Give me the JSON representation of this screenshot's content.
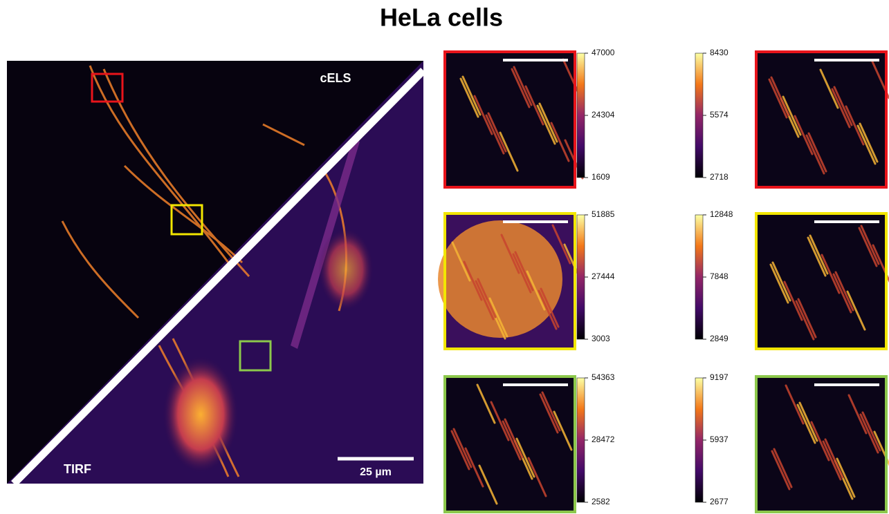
{
  "title": "HeLa cells",
  "main_image": {
    "top_label": "cELS",
    "bottom_label": "TIRF",
    "scale_bar": "25 µm"
  },
  "insets": [
    {
      "color": "#e8141b",
      "left_colorbar": {
        "max": 47000,
        "mid": 24304,
        "min": 1609
      },
      "right_colorbar": {
        "max": 8430,
        "mid": 5574,
        "min": 2718
      }
    },
    {
      "color": "#f2e600",
      "left_colorbar": {
        "max": 51885,
        "mid": 27444,
        "min": 3003
      },
      "right_colorbar": {
        "max": 12848,
        "mid": 7848,
        "min": 2849
      }
    },
    {
      "color": "#8cc84b",
      "left_colorbar": {
        "max": 54363,
        "mid": 28472,
        "min": 2582
      },
      "right_colorbar": {
        "max": 9197,
        "mid": 5937,
        "min": 2677
      }
    }
  ]
}
